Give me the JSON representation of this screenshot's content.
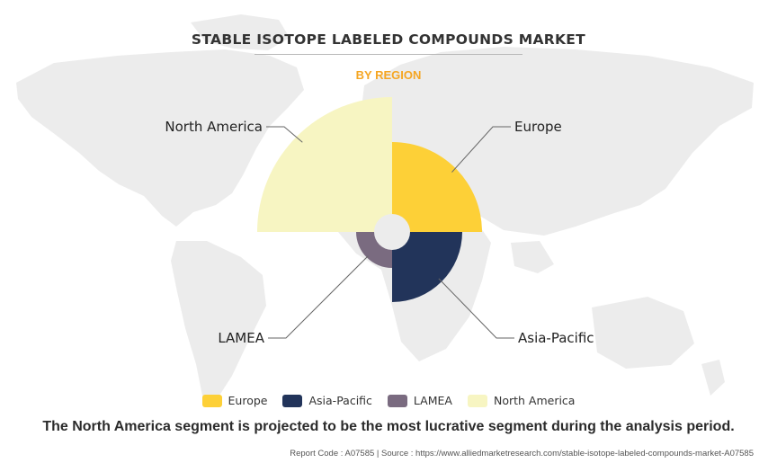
{
  "page": {
    "title": "STABLE ISOTOPE LABELED COMPOUNDS MARKET",
    "subtitle": "BY REGION",
    "caption": "The North America segment is projected to be the most lucrative segment during the analysis period.",
    "footer": {
      "report_code": "Report Code : A07585",
      "separator": "|",
      "source": "Source : https://www.alliedmarketresearch.com/stable-isotope-labeled-compounds-market-A07585"
    }
  },
  "colors": {
    "title": "#333333",
    "subtitle": "#f5a623",
    "map": "#ececec"
  },
  "chart_data": {
    "type": "polar-area",
    "note_type": "nightingale rose, equal quarter sectors",
    "categories": [
      "Europe",
      "Asia-Pacific",
      "LAMEA",
      "North America"
    ],
    "values": [
      100,
      78,
      40,
      150
    ],
    "value_scale": "relative radius, no axis printed",
    "colors": [
      "#fdd037",
      "#22345a",
      "#7a6b80",
      "#f7f5c2"
    ],
    "legend": {
      "position": "bottom",
      "entries": [
        "Europe",
        "Asia-Pacific",
        "LAMEA",
        "North America"
      ]
    }
  }
}
